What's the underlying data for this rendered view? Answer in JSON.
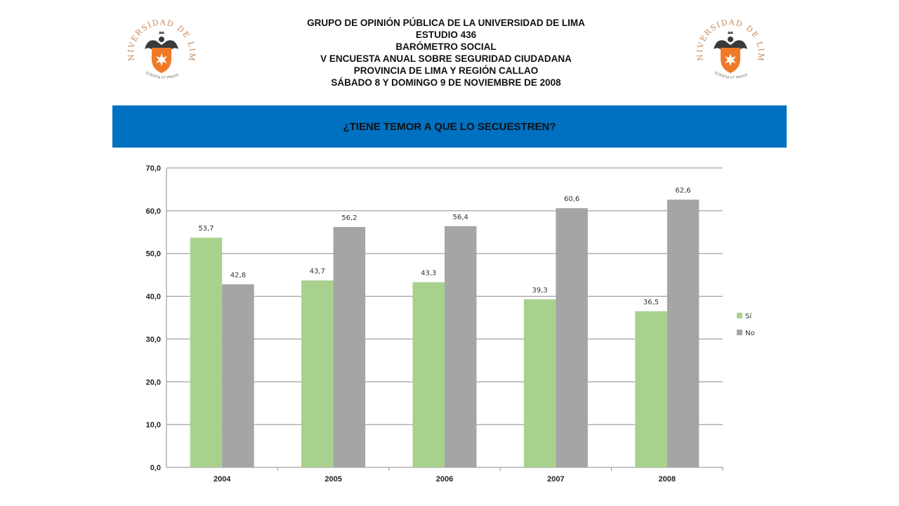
{
  "header": {
    "lines": [
      "GRUPO DE OPINIÓN PÚBLICA DE LA UNIVERSIDAD DE LIMA",
      "ESTUDIO 436",
      "BARÓMETRO SOCIAL",
      "V ENCUESTA ANUAL SOBRE SEGURIDAD CIUDADANA",
      "PROVINCIA DE LIMA Y REGIÓN CALLAO",
      "SÁBADO 8 Y DOMINGO 9 DE NOVIEMBRE DE 2008"
    ]
  },
  "logo": {
    "arc_text": "UNIVERSIDAD DE LIMA",
    "motto": "SCIENTIA ET PRAXIS",
    "colors": {
      "text": "#c8875a",
      "shield": "#f07a28",
      "eagle": "#3a3a3a"
    }
  },
  "banner": {
    "title": "¿TIENE TEMOR A QUE LO SECUESTREN?",
    "color": "#0070c0"
  },
  "chart_data": {
    "type": "bar",
    "title": "",
    "xlabel": "",
    "ylabel": "",
    "categories": [
      "2004",
      "2005",
      "2006",
      "2007",
      "2008"
    ],
    "series": [
      {
        "name": "Sí",
        "values": [
          53.7,
          43.7,
          43.3,
          39.3,
          36.5
        ],
        "color": "#a9d18e"
      },
      {
        "name": "No",
        "values": [
          42.8,
          56.2,
          56.4,
          60.6,
          62.6
        ],
        "color": "#a5a5a5"
      }
    ],
    "data_labels": {
      "Sí": [
        "53,7",
        "43,7",
        "43,3",
        "39,3",
        "36,5"
      ],
      "No": [
        "42,8",
        "56,2",
        "56,4",
        "60,6",
        "62,6"
      ]
    },
    "ylim": [
      0,
      70
    ],
    "yticks": [
      "0,0",
      "10,0",
      "20,0",
      "30,0",
      "40,0",
      "50,0",
      "60,0",
      "70,0"
    ],
    "grid": true,
    "legend_position": "right"
  }
}
